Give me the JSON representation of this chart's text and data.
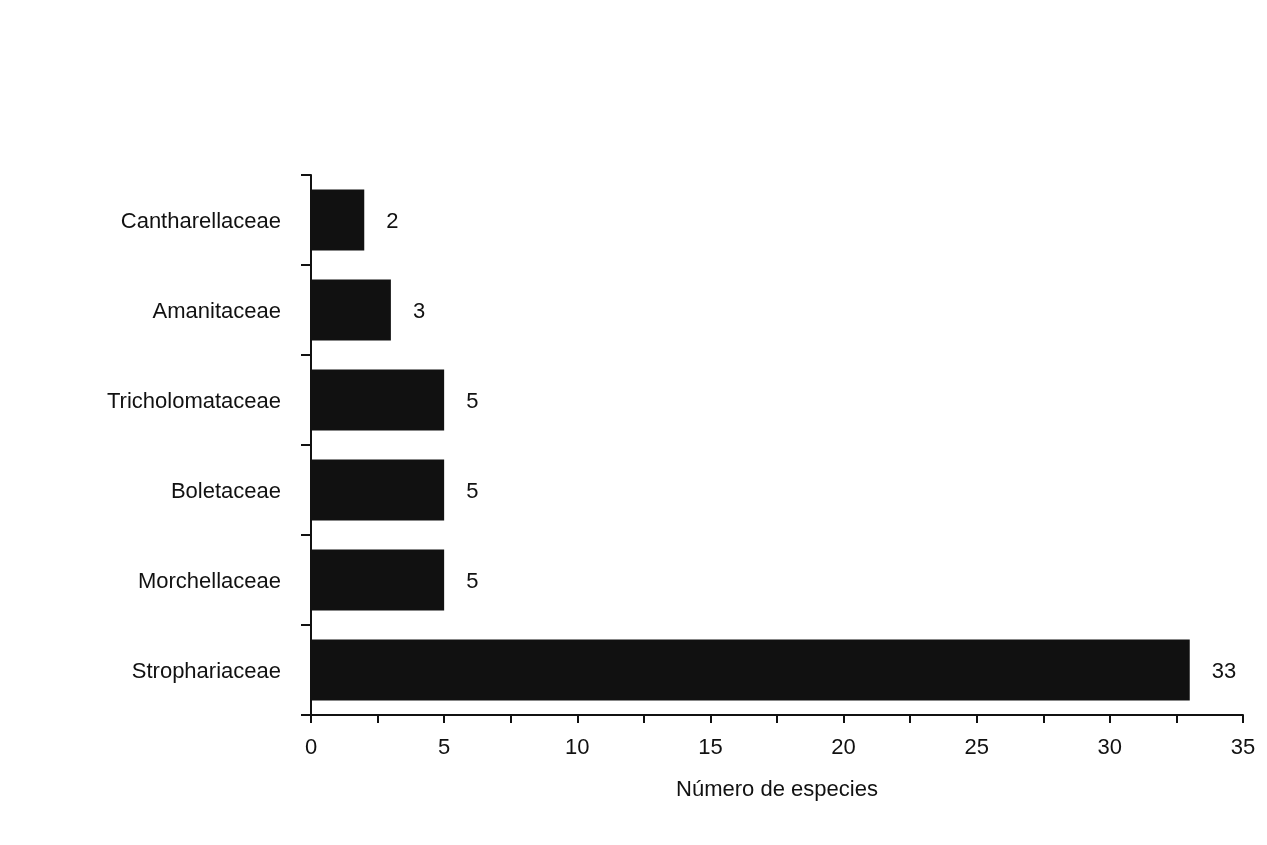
{
  "chart_data": {
    "type": "bar",
    "orientation": "horizontal",
    "xlabel": "Número de especies",
    "categories": [
      "Cantharellaceae",
      "Amanitaceae",
      "Tricholomataceae",
      "Boletaceae",
      "Morchellaceae",
      "Strophariaceae"
    ],
    "values": [
      2,
      3,
      5,
      5,
      5,
      33
    ],
    "color": "#111111",
    "xlim": [
      0,
      35
    ],
    "xticks": [
      0,
      {
        "value": 2.5,
        "label": null
      },
      5,
      {
        "value": 7.5,
        "label": null
      },
      10,
      {
        "value": 12.5,
        "label": null
      },
      15,
      {
        "value": 17.5,
        "label": null
      },
      20,
      {
        "value": 22.5,
        "label": null
      },
      25,
      {
        "value": 27.5,
        "label": null
      },
      30,
      {
        "value": 32.5,
        "label": null
      },
      35
    ],
    "data_labels": true,
    "grid": false
  }
}
